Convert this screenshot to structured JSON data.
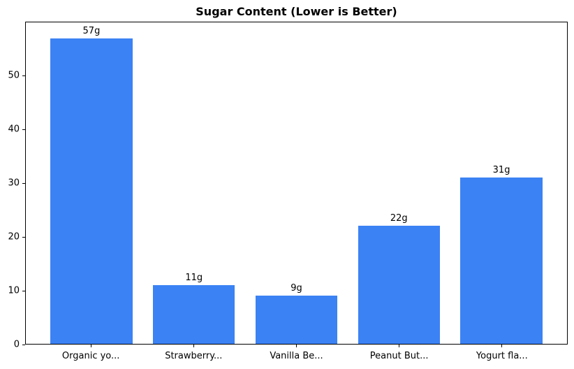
{
  "chart_data": {
    "type": "bar",
    "title": "Sugar Content (Lower is Better)",
    "categories": [
      "Organic yo...",
      "Strawberry...",
      "Vanilla Be...",
      "Peanut But...",
      "Yogurt fla..."
    ],
    "values": [
      57,
      11,
      9,
      22,
      31
    ],
    "value_labels": [
      "57g",
      "11g",
      "9g",
      "22g",
      "31g"
    ],
    "xlabel": "",
    "ylabel": "",
    "ylim": [
      0,
      60
    ],
    "yticks": [
      0,
      10,
      20,
      30,
      40,
      50
    ],
    "bar_color": "#3b82f4",
    "text_color": "#000000",
    "grid": false,
    "legend": null
  }
}
